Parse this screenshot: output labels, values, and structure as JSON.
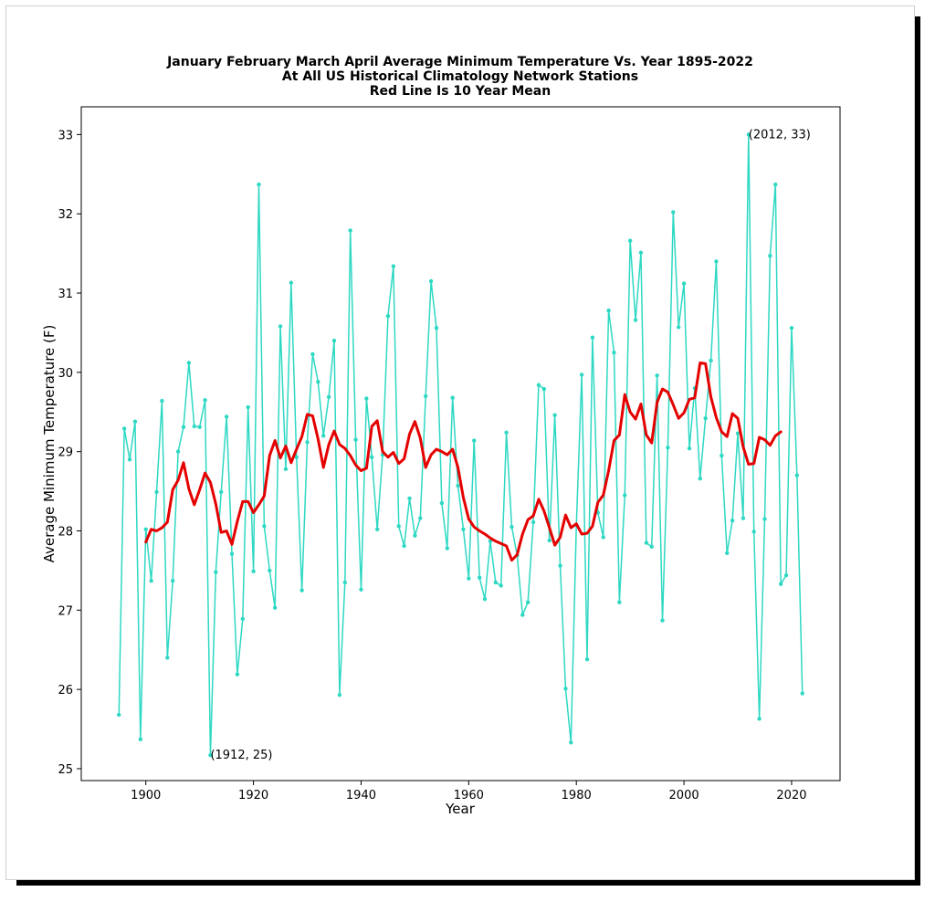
{
  "chart_data": {
    "type": "line",
    "title_lines": [
      "January February March April Average Minimum Temperature Vs. Year 1895-2022",
      "At All US Historical Climatology Network Stations",
      "Red Line Is 10 Year Mean"
    ],
    "xlabel": "Year",
    "ylabel": "Average Minimum Temperature (F)",
    "xlim": [
      1888,
      2029
    ],
    "ylim": [
      24.85,
      33.35
    ],
    "xticks": [
      1900,
      1920,
      1940,
      1960,
      1980,
      2000,
      2020
    ],
    "yticks": [
      25,
      26,
      27,
      28,
      29,
      30,
      31,
      32,
      33
    ],
    "grid": false,
    "colors": {
      "annual": "#2ed8c3",
      "mean": "#e50000"
    },
    "series": [
      {
        "x_start": 1895,
        "values": [
          25.68,
          29.29,
          28.9,
          29.38,
          25.37,
          28.02,
          27.37,
          28.49,
          29.64,
          26.4,
          27.37,
          29.0,
          29.31,
          30.12,
          29.32,
          29.31,
          29.65,
          25.17,
          27.48,
          28.49,
          29.44,
          27.71,
          26.19,
          26.89,
          29.56,
          27.49,
          32.37,
          28.06,
          27.5,
          27.03,
          30.58,
          28.78,
          31.13,
          28.93,
          27.25,
          29.12,
          30.23,
          29.88,
          29.2,
          29.69,
          30.4,
          25.93,
          27.35,
          31.79,
          29.15,
          27.26,
          29.67,
          28.93,
          28.02,
          28.96,
          30.71,
          31.34,
          28.06,
          27.81,
          28.41,
          27.94,
          28.16,
          29.7,
          31.15,
          30.56,
          28.35,
          27.78,
          29.68,
          28.57,
          28.02,
          27.4,
          29.14,
          27.41,
          27.14,
          27.87,
          27.35,
          27.31,
          29.24,
          28.05,
          27.69,
          26.94,
          27.1,
          28.11,
          29.84,
          29.79,
          27.88,
          29.46,
          27.56,
          26.01,
          25.33,
          28.07,
          29.97,
          26.38,
          30.44,
          28.23,
          27.92,
          30.78,
          30.25,
          27.1,
          28.45,
          31.66,
          30.66,
          31.51,
          27.85,
          27.8,
          29.96,
          26.87,
          29.05,
          32.02,
          30.57,
          31.12,
          29.04,
          29.8,
          28.66,
          29.42,
          30.15,
          31.4,
          28.95,
          27.72,
          28.13,
          29.23,
          28.16,
          33.0,
          27.99,
          25.63,
          28.15,
          31.47,
          32.37,
          27.33,
          27.44,
          30.56,
          28.7,
          25.95
        ]
      },
      {
        "x_start": 1900,
        "values": [
          27.86,
          28.02,
          28.0,
          28.04,
          28.11,
          28.52,
          28.64,
          28.86,
          28.53,
          28.33,
          28.52,
          28.73,
          28.61,
          28.34,
          27.98,
          28.0,
          27.83,
          28.12,
          28.37,
          28.37,
          28.23,
          28.33,
          28.44,
          28.95,
          29.14,
          28.92,
          29.07,
          28.86,
          29.03,
          29.19,
          29.47,
          29.45,
          29.16,
          28.8,
          29.09,
          29.26,
          29.09,
          29.04,
          28.95,
          28.83,
          28.76,
          28.79,
          29.32,
          29.39,
          29.0,
          28.93,
          28.99,
          28.85,
          28.91,
          29.22,
          29.38,
          29.17,
          28.8,
          28.96,
          29.03,
          29.0,
          28.96,
          29.03,
          28.8,
          28.42,
          28.15,
          28.05,
          28.0,
          27.96,
          27.91,
          27.87,
          27.84,
          27.81,
          27.63,
          27.7,
          27.96,
          28.14,
          28.19,
          28.4,
          28.25,
          28.04,
          27.82,
          27.92,
          28.2,
          28.04,
          28.09,
          27.96,
          27.97,
          28.06,
          28.36,
          28.45,
          28.76,
          29.14,
          29.21,
          29.72,
          29.5,
          29.41,
          29.6,
          29.21,
          29.11,
          29.62,
          29.79,
          29.75,
          29.59,
          29.42,
          29.49,
          29.66,
          29.68,
          30.12,
          30.11,
          29.69,
          29.43,
          29.25,
          29.19,
          29.48,
          29.42,
          29.06,
          28.84,
          28.85,
          29.18,
          29.15,
          29.08,
          29.2,
          29.25
        ]
      }
    ],
    "annotations": [
      {
        "text": "(1912, 25)",
        "x": 1912,
        "y": 25.17
      },
      {
        "text": "(2012, 33)",
        "x": 2012,
        "y": 33.0
      }
    ]
  }
}
